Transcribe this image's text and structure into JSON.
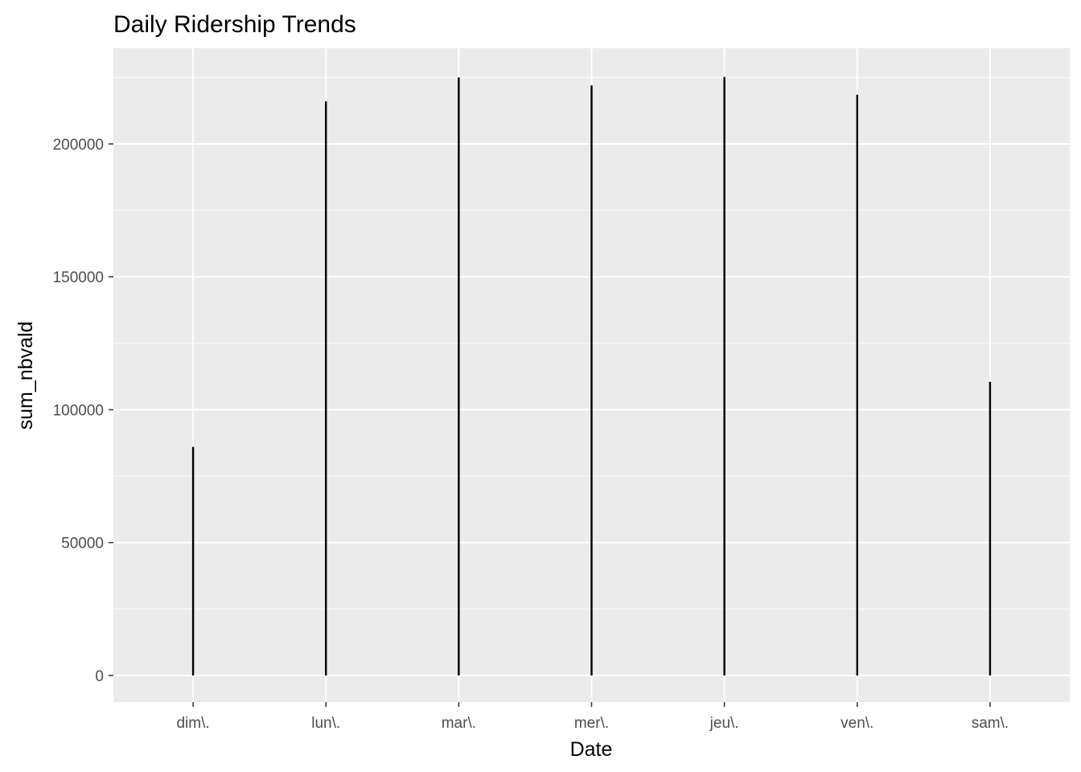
{
  "chart_data": {
    "type": "bar",
    "title": "Daily Ridership Trends",
    "xlabel": "Date",
    "ylabel": "sum_nbvald",
    "categories": [
      "dim\\.",
      "lun\\.",
      "mar\\.",
      "mer\\.",
      "jeu\\.",
      "ven\\.",
      "sam\\."
    ],
    "values": [
      86000,
      216000,
      225000,
      222000,
      225200,
      218500,
      110500
    ],
    "ylim": [
      -10000,
      236000
    ],
    "yticks": [
      0,
      50000,
      100000,
      150000,
      200000
    ],
    "grid": true,
    "legend": "none",
    "colors": {
      "panel_background": "#ebebeb",
      "gridline": "#ffffff",
      "bar": "#000000",
      "tick_text": "#4d4d4d"
    }
  }
}
